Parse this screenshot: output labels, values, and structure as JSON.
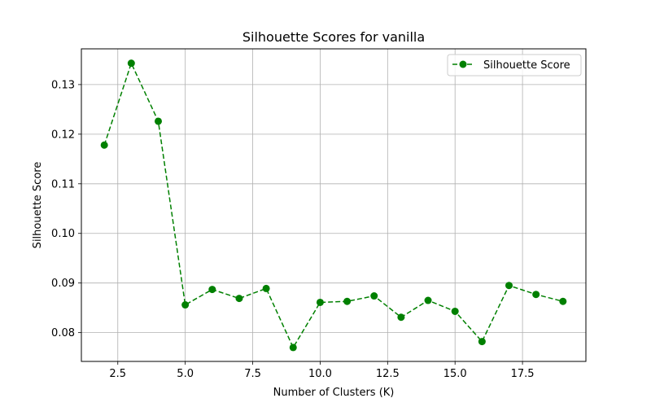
{
  "chart_data": {
    "type": "line",
    "title": "Silhouette Scores for vanilla",
    "xlabel": "Number of Clusters (K)",
    "ylabel": "Silhouette Score",
    "xlim": [
      1.15,
      19.85
    ],
    "ylim": [
      0.0742,
      0.1372
    ],
    "x_ticks": [
      2.5,
      5.0,
      7.5,
      10.0,
      12.5,
      15.0,
      17.5
    ],
    "x_tick_labels": [
      "2.5",
      "5.0",
      "7.5",
      "10.0",
      "12.5",
      "15.0",
      "17.5"
    ],
    "y_ticks": [
      0.08,
      0.09,
      0.1,
      0.11,
      0.12,
      0.13
    ],
    "y_tick_labels": [
      "0.08",
      "0.09",
      "0.10",
      "0.11",
      "0.12",
      "0.13"
    ],
    "grid": true,
    "legend_position": "top-right",
    "series": [
      {
        "name": "Silhouette Score",
        "color": "#008000",
        "line_style": "dashed",
        "marker": "circle",
        "x": [
          2,
          3,
          4,
          5,
          6,
          7,
          8,
          9,
          10,
          11,
          12,
          13,
          14,
          15,
          16,
          17,
          18,
          19
        ],
        "y": [
          0.1178,
          0.1343,
          0.1226,
          0.0856,
          0.0887,
          0.0869,
          0.0889,
          0.077,
          0.0861,
          0.0863,
          0.0874,
          0.0831,
          0.0865,
          0.0843,
          0.0782,
          0.0895,
          0.0877,
          0.0863
        ]
      }
    ]
  }
}
